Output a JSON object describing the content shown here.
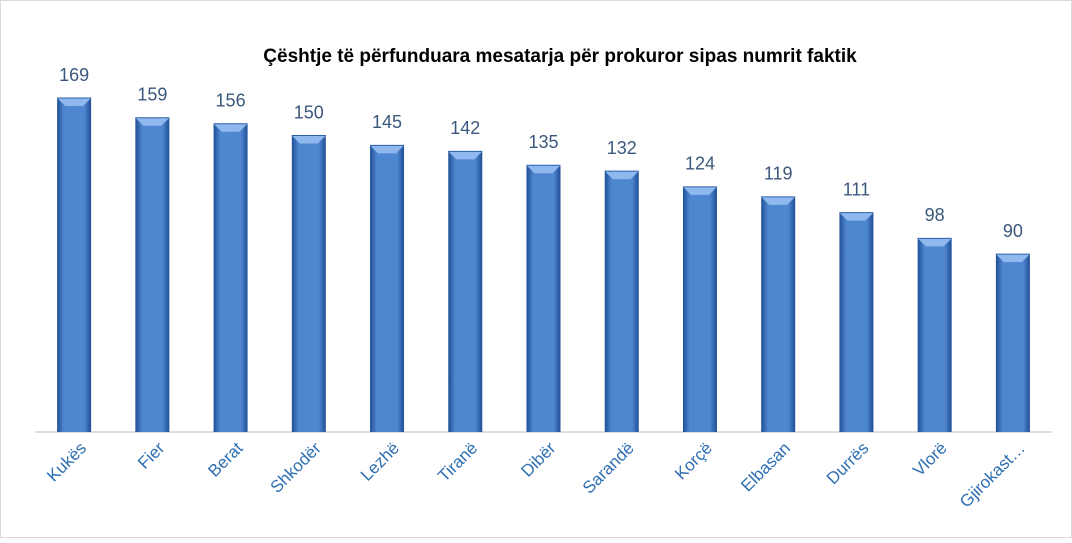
{
  "chart_data": {
    "type": "bar",
    "title": "Çështje  të përfunduara mesatarja për prokuror sipas numrit faktik",
    "categories": [
      "Kukës",
      "Fier",
      "Berat",
      "Shkodër",
      "Lezhë",
      "Tiranë",
      "Dibër",
      "Sarandë",
      "Korçë",
      "Elbasan",
      "Durrës",
      "Vlorë",
      "Gjirokast…"
    ],
    "values": [
      169,
      159,
      156,
      150,
      145,
      142,
      135,
      132,
      124,
      119,
      111,
      98,
      90
    ],
    "color": "#4f86d0"
  }
}
